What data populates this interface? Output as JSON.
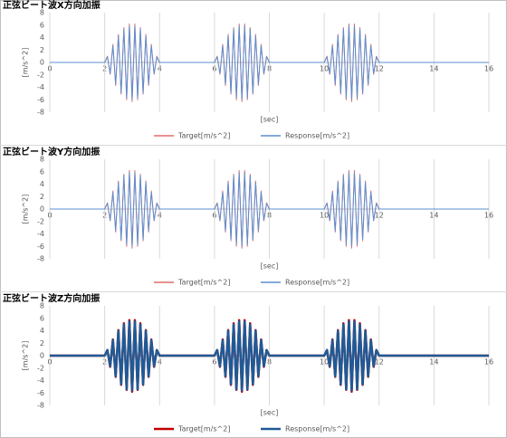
{
  "chart_data": [
    {
      "type": "line",
      "title": "正弦ビート波X方向加振",
      "xlabel": "[sec]",
      "ylabel": "[m/s^2]",
      "xlim": [
        0,
        16
      ],
      "ylim": [
        -8,
        8
      ],
      "xticks": [
        0,
        2,
        4,
        6,
        8,
        10,
        12,
        14,
        16
      ],
      "yticks": [
        -8,
        -6,
        -4,
        -2,
        0,
        2,
        4,
        6,
        8
      ],
      "grid": "vertical",
      "legend": "bottom",
      "line_width": 1,
      "x": [
        0,
        2,
        2.1,
        2.2,
        2.3,
        2.4,
        2.5,
        2.6,
        2.7,
        2.8,
        2.9,
        3,
        3.1,
        3.2,
        3.3,
        3.4,
        3.5,
        3.6,
        3.7,
        3.8,
        3.9,
        4,
        6,
        6.1,
        6.2,
        6.3,
        6.4,
        6.5,
        6.6,
        6.7,
        6.8,
        6.9,
        7,
        7.1,
        7.2,
        7.3,
        7.4,
        7.5,
        7.6,
        7.7,
        7.8,
        7.9,
        8,
        10,
        10.1,
        10.2,
        10.3,
        10.4,
        10.5,
        10.6,
        10.7,
        10.8,
        10.9,
        11,
        11.1,
        11.2,
        11.3,
        11.4,
        11.5,
        11.6,
        11.7,
        11.8,
        11.9,
        12,
        16
      ],
      "series": [
        {
          "name": "Target[m/s^2]",
          "color": "#e46c6c",
          "values": [
            0,
            0,
            1.0,
            -1.9,
            2.9,
            -3.7,
            4.5,
            -5.1,
            5.6,
            -6.0,
            6.2,
            -6.3,
            6.2,
            -6.0,
            5.6,
            -5.1,
            4.5,
            -3.7,
            2.9,
            -1.9,
            1.0,
            0,
            0,
            1.0,
            -1.9,
            2.9,
            -3.7,
            4.5,
            -5.1,
            5.6,
            -6.0,
            6.2,
            -6.3,
            6.2,
            -6.0,
            5.6,
            -5.1,
            4.5,
            -3.7,
            2.9,
            -1.9,
            1.0,
            0,
            0,
            1.0,
            -1.9,
            2.9,
            -3.7,
            4.5,
            -5.1,
            5.6,
            -6.0,
            6.2,
            -6.3,
            6.2,
            -6.0,
            5.6,
            -5.1,
            4.5,
            -3.7,
            2.9,
            -1.9,
            1.0,
            0,
            0
          ]
        },
        {
          "name": "Response[m/s^2]",
          "color": "#5b8fd0",
          "values": [
            0,
            0,
            0.9,
            -1.8,
            2.7,
            -3.5,
            4.3,
            -4.9,
            5.4,
            -5.7,
            5.9,
            -6.0,
            5.9,
            -5.7,
            5.4,
            -4.9,
            4.3,
            -3.5,
            2.7,
            -1.8,
            0.9,
            0,
            0,
            0.9,
            -1.8,
            2.7,
            -3.5,
            4.3,
            -4.9,
            5.4,
            -5.7,
            5.9,
            -6.0,
            5.9,
            -5.7,
            5.4,
            -4.9,
            4.3,
            -3.5,
            2.7,
            -1.8,
            0.9,
            0,
            0,
            0.9,
            -1.8,
            2.7,
            -3.5,
            4.3,
            -4.9,
            5.4,
            -5.7,
            5.9,
            -6.0,
            5.9,
            -5.7,
            5.4,
            -4.9,
            4.3,
            -3.5,
            2.7,
            -1.8,
            0.9,
            0,
            0
          ]
        }
      ]
    },
    {
      "type": "line",
      "title": "正弦ビート波Y方向加振",
      "xlabel": "[sec]",
      "ylabel": "[m/s^2]",
      "xlim": [
        0,
        16
      ],
      "ylim": [
        -8,
        8
      ],
      "xticks": [
        0,
        2,
        4,
        6,
        8,
        10,
        12,
        14,
        16
      ],
      "yticks": [
        -8,
        -6,
        -4,
        -2,
        0,
        2,
        4,
        6,
        8
      ],
      "grid": "vertical",
      "legend": "bottom",
      "line_width": 1,
      "x": [
        0,
        2,
        2.1,
        2.2,
        2.3,
        2.4,
        2.5,
        2.6,
        2.7,
        2.8,
        2.9,
        3,
        3.1,
        3.2,
        3.3,
        3.4,
        3.5,
        3.6,
        3.7,
        3.8,
        3.9,
        4,
        6,
        6.1,
        6.2,
        6.3,
        6.4,
        6.5,
        6.6,
        6.7,
        6.8,
        6.9,
        7,
        7.1,
        7.2,
        7.3,
        7.4,
        7.5,
        7.6,
        7.7,
        7.8,
        7.9,
        8,
        10,
        10.1,
        10.2,
        10.3,
        10.4,
        10.5,
        10.6,
        10.7,
        10.8,
        10.9,
        11,
        11.1,
        11.2,
        11.3,
        11.4,
        11.5,
        11.6,
        11.7,
        11.8,
        11.9,
        12,
        16
      ],
      "series": [
        {
          "name": "Target[m/s^2]",
          "color": "#e46c6c",
          "values": [
            0,
            0,
            1.0,
            -1.9,
            2.9,
            -3.7,
            4.5,
            -5.1,
            5.6,
            -6.0,
            6.2,
            -6.3,
            6.2,
            -6.0,
            5.6,
            -5.1,
            4.5,
            -3.7,
            2.9,
            -1.9,
            1.0,
            0,
            0,
            1.0,
            -1.9,
            2.9,
            -3.7,
            4.5,
            -5.1,
            5.6,
            -6.0,
            6.2,
            -6.3,
            6.2,
            -6.0,
            5.6,
            -5.1,
            4.5,
            -3.7,
            2.9,
            -1.9,
            1.0,
            0,
            0,
            1.0,
            -1.9,
            2.9,
            -3.7,
            4.5,
            -5.1,
            5.6,
            -6.0,
            6.2,
            -6.3,
            6.2,
            -6.0,
            5.6,
            -5.1,
            4.5,
            -3.7,
            2.9,
            -1.9,
            1.0,
            0,
            0
          ]
        },
        {
          "name": "Response[m/s^2]",
          "color": "#5b8fd0",
          "values": [
            0,
            0,
            0.9,
            -1.8,
            2.7,
            -3.5,
            4.3,
            -4.9,
            5.4,
            -5.7,
            5.9,
            -6.0,
            5.9,
            -5.7,
            5.4,
            -4.9,
            4.3,
            -3.5,
            2.7,
            -1.8,
            0.9,
            0,
            0,
            0.9,
            -1.8,
            2.7,
            -3.5,
            4.3,
            -4.9,
            5.4,
            -5.7,
            5.9,
            -6.0,
            5.9,
            -5.7,
            5.4,
            -4.9,
            4.3,
            -3.5,
            2.7,
            -1.8,
            0.9,
            0,
            0,
            0.9,
            -1.8,
            2.7,
            -3.5,
            4.3,
            -4.9,
            5.4,
            -5.7,
            5.9,
            -6.0,
            5.9,
            -5.7,
            5.4,
            -4.9,
            4.3,
            -3.5,
            2.7,
            -1.8,
            0.9,
            0,
            0
          ]
        }
      ]
    },
    {
      "type": "line",
      "title": "正弦ビート波Z方向加振",
      "xlabel": "[sec]",
      "ylabel": "[m/s^2]",
      "xlim": [
        0,
        16
      ],
      "ylim": [
        -8,
        8
      ],
      "xticks": [
        0,
        2,
        4,
        6,
        8,
        10,
        12,
        14,
        16
      ],
      "yticks": [
        -8,
        -6,
        -4,
        -2,
        0,
        2,
        4,
        6,
        8
      ],
      "grid": "vertical",
      "legend": "bottom",
      "line_width": 2.5,
      "x": [
        0,
        2,
        2.1,
        2.2,
        2.3,
        2.4,
        2.5,
        2.6,
        2.7,
        2.8,
        2.9,
        3,
        3.1,
        3.2,
        3.3,
        3.4,
        3.5,
        3.6,
        3.7,
        3.8,
        3.9,
        4,
        6,
        6.1,
        6.2,
        6.3,
        6.4,
        6.5,
        6.6,
        6.7,
        6.8,
        6.9,
        7,
        7.1,
        7.2,
        7.3,
        7.4,
        7.5,
        7.6,
        7.7,
        7.8,
        7.9,
        8,
        10,
        10.1,
        10.2,
        10.3,
        10.4,
        10.5,
        10.6,
        10.7,
        10.8,
        10.9,
        11,
        11.1,
        11.2,
        11.3,
        11.4,
        11.5,
        11.6,
        11.7,
        11.8,
        11.9,
        12,
        16
      ],
      "series": [
        {
          "name": "Target[m/s^2]",
          "color": "#c00000",
          "values": [
            0,
            0,
            0.9,
            -1.8,
            2.6,
            -3.4,
            4.1,
            -4.7,
            5.2,
            -5.5,
            5.7,
            -5.8,
            5.7,
            -5.5,
            5.2,
            -4.7,
            4.1,
            -3.4,
            2.6,
            -1.8,
            0.9,
            0,
            0,
            0.9,
            -1.8,
            2.6,
            -3.4,
            4.1,
            -4.7,
            5.2,
            -5.5,
            5.7,
            -5.8,
            5.7,
            -5.5,
            5.2,
            -4.7,
            4.1,
            -3.4,
            2.6,
            -1.8,
            0.9,
            0,
            0,
            0.9,
            -1.8,
            2.6,
            -3.4,
            4.1,
            -4.7,
            5.2,
            -5.5,
            5.7,
            -5.8,
            5.7,
            -5.5,
            5.2,
            -4.7,
            4.1,
            -3.4,
            2.6,
            -1.8,
            0.9,
            0,
            0
          ]
        },
        {
          "name": "Response[m/s^2]",
          "color": "#1f5a96",
          "values": [
            0,
            0,
            0.9,
            -1.7,
            2.5,
            -3.3,
            4.0,
            -4.6,
            5.0,
            -5.4,
            5.5,
            -5.6,
            5.5,
            -5.4,
            5.0,
            -4.6,
            4.0,
            -3.3,
            2.5,
            -1.7,
            0.9,
            0,
            0,
            0.9,
            -1.7,
            2.5,
            -3.3,
            4.0,
            -4.6,
            5.0,
            -5.4,
            5.5,
            -5.6,
            5.5,
            -5.4,
            5.0,
            -4.6,
            4.0,
            -3.3,
            2.5,
            -1.7,
            0.9,
            0,
            0,
            0.9,
            -1.7,
            2.5,
            -3.3,
            4.0,
            -4.6,
            5.0,
            -5.4,
            5.5,
            -5.6,
            5.5,
            -5.4,
            5.0,
            -4.6,
            4.0,
            -3.3,
            2.5,
            -1.7,
            0.9,
            0,
            0
          ]
        }
      ]
    }
  ]
}
